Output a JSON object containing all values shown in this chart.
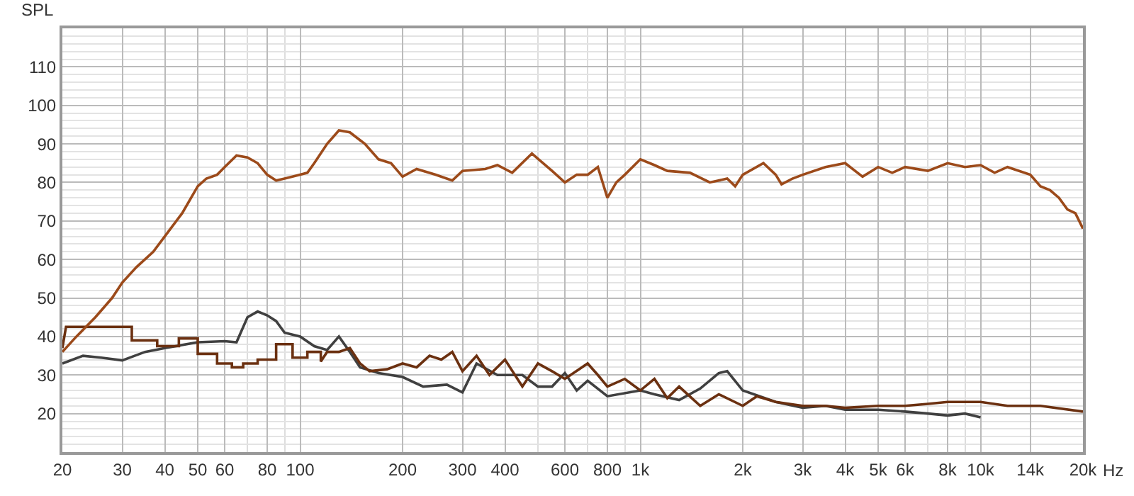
{
  "chart_data": {
    "type": "line",
    "ylabel": "SPL",
    "log": "x",
    "grid": true,
    "line_style": "solid",
    "marker": "none",
    "xlim": [
      20,
      20000
    ],
    "ylim": [
      10,
      120
    ],
    "xticks": [
      20,
      30,
      40,
      50,
      60,
      80,
      100,
      200,
      300,
      400,
      600,
      800,
      {
        "value": 1000,
        "label": "1k"
      },
      {
        "value": 2000,
        "label": "2k"
      },
      {
        "value": 3000,
        "label": "3k"
      },
      {
        "value": 4000,
        "label": "4k"
      },
      {
        "value": 5000,
        "label": "5k"
      },
      {
        "value": 6000,
        "label": "6k"
      },
      {
        "value": 8000,
        "label": "8k"
      },
      {
        "value": 10000,
        "label": "10k"
      },
      {
        "value": 14000,
        "label": "14k"
      },
      {
        "value": 20000,
        "label": "20k"
      }
    ],
    "xlabel": "Hz",
    "yticks": [
      20,
      30,
      40,
      50,
      60,
      70,
      80,
      90,
      100,
      110
    ],
    "series": [
      {
        "color": "#404040",
        "x": [
          20,
          23,
          26,
          30,
          35,
          40,
          50,
          60,
          65,
          70,
          75,
          80,
          85,
          90,
          100,
          110,
          120,
          130,
          140,
          150,
          170,
          200,
          230,
          270,
          300,
          330,
          380,
          450,
          500,
          550,
          600,
          650,
          700,
          800,
          1000,
          1100,
          1300,
          1500,
          1700,
          1800,
          2000,
          2500,
          3000,
          3500,
          4000,
          5000,
          6000,
          7000,
          8000,
          9000,
          10000
        ],
        "values": [
          33,
          35,
          34.5,
          33.8,
          36,
          37,
          38.5,
          38.8,
          38.5,
          45,
          46.5,
          45.5,
          44,
          41,
          40,
          37.5,
          36.5,
          40,
          36,
          32,
          30.5,
          29.5,
          27,
          27.5,
          25.5,
          33,
          30,
          30,
          27,
          27,
          30.5,
          26,
          28.5,
          24.5,
          26,
          25,
          23.5,
          26.5,
          30.5,
          31,
          26,
          23,
          21.5,
          22,
          21,
          21,
          20.5,
          20,
          19.5,
          20,
          19
        ]
      },
      {
        "color": "#6b3010",
        "x": [
          20,
          20.5,
          32,
          32,
          38,
          38,
          44,
          44,
          50,
          50,
          57,
          57,
          63,
          63,
          68,
          68,
          75,
          75,
          85,
          85,
          95,
          95,
          105,
          105,
          115,
          115,
          120,
          130,
          140,
          150,
          160,
          180,
          200,
          220,
          240,
          260,
          280,
          300,
          330,
          360,
          400,
          450,
          500,
          550,
          600,
          700,
          750,
          800,
          900,
          1000,
          1100,
          1200,
          1300,
          1500,
          1700,
          2000,
          2200,
          2500,
          3000,
          3500,
          4000,
          5000,
          6000,
          7000,
          8000,
          10000,
          12000,
          15000,
          20000
        ],
        "values": [
          37,
          42.5,
          42.5,
          39,
          39,
          37.5,
          37.5,
          39.5,
          39.5,
          35.5,
          35.5,
          33,
          33,
          32,
          32,
          33,
          33,
          34,
          34,
          38,
          38,
          34.5,
          34.5,
          36,
          36,
          33.5,
          36,
          36,
          37,
          33,
          31,
          31.5,
          33,
          32,
          35,
          34,
          36,
          31,
          35,
          30,
          34,
          27,
          33,
          31,
          29,
          33,
          30,
          27,
          29,
          26,
          29,
          24,
          27,
          22,
          25,
          22,
          24.5,
          23,
          22,
          22,
          21.5,
          22,
          22,
          22.5,
          23,
          23,
          22,
          22,
          20.5
        ]
      },
      {
        "color": "#9c4a1a",
        "x": [
          20,
          22,
          25,
          28,
          30,
          33,
          37,
          40,
          45,
          50,
          53,
          57,
          60,
          65,
          70,
          75,
          80,
          85,
          90,
          100,
          105,
          110,
          120,
          130,
          140,
          155,
          170,
          185,
          200,
          220,
          250,
          280,
          300,
          350,
          380,
          420,
          480,
          550,
          600,
          650,
          700,
          750,
          800,
          850,
          900,
          1000,
          1100,
          1200,
          1400,
          1600,
          1800,
          1900,
          2000,
          2300,
          2500,
          2600,
          2800,
          3000,
          3500,
          4000,
          4500,
          5000,
          5500,
          6000,
          7000,
          8000,
          9000,
          10000,
          11000,
          12000,
          14000,
          15000,
          16000,
          17000,
          18000,
          19000,
          20000
        ],
        "values": [
          36,
          40,
          45,
          50,
          54,
          58,
          62,
          66,
          72,
          79,
          81,
          82,
          84,
          87,
          86.5,
          85,
          82,
          80.5,
          81,
          82,
          82.5,
          85,
          90,
          93.5,
          93,
          90,
          86,
          85,
          81.5,
          83.5,
          82,
          80.5,
          83,
          83.5,
          84.5,
          82.5,
          87.5,
          83,
          80,
          82,
          82,
          84,
          76,
          80,
          82,
          86,
          84.5,
          83,
          82.5,
          80,
          81,
          79,
          82,
          85,
          82,
          79.5,
          81,
          82,
          84,
          85,
          81.5,
          84,
          82.5,
          84,
          83,
          85,
          84,
          84.5,
          82.5,
          84,
          82,
          79,
          78,
          76,
          73,
          72,
          68
        ]
      }
    ]
  }
}
